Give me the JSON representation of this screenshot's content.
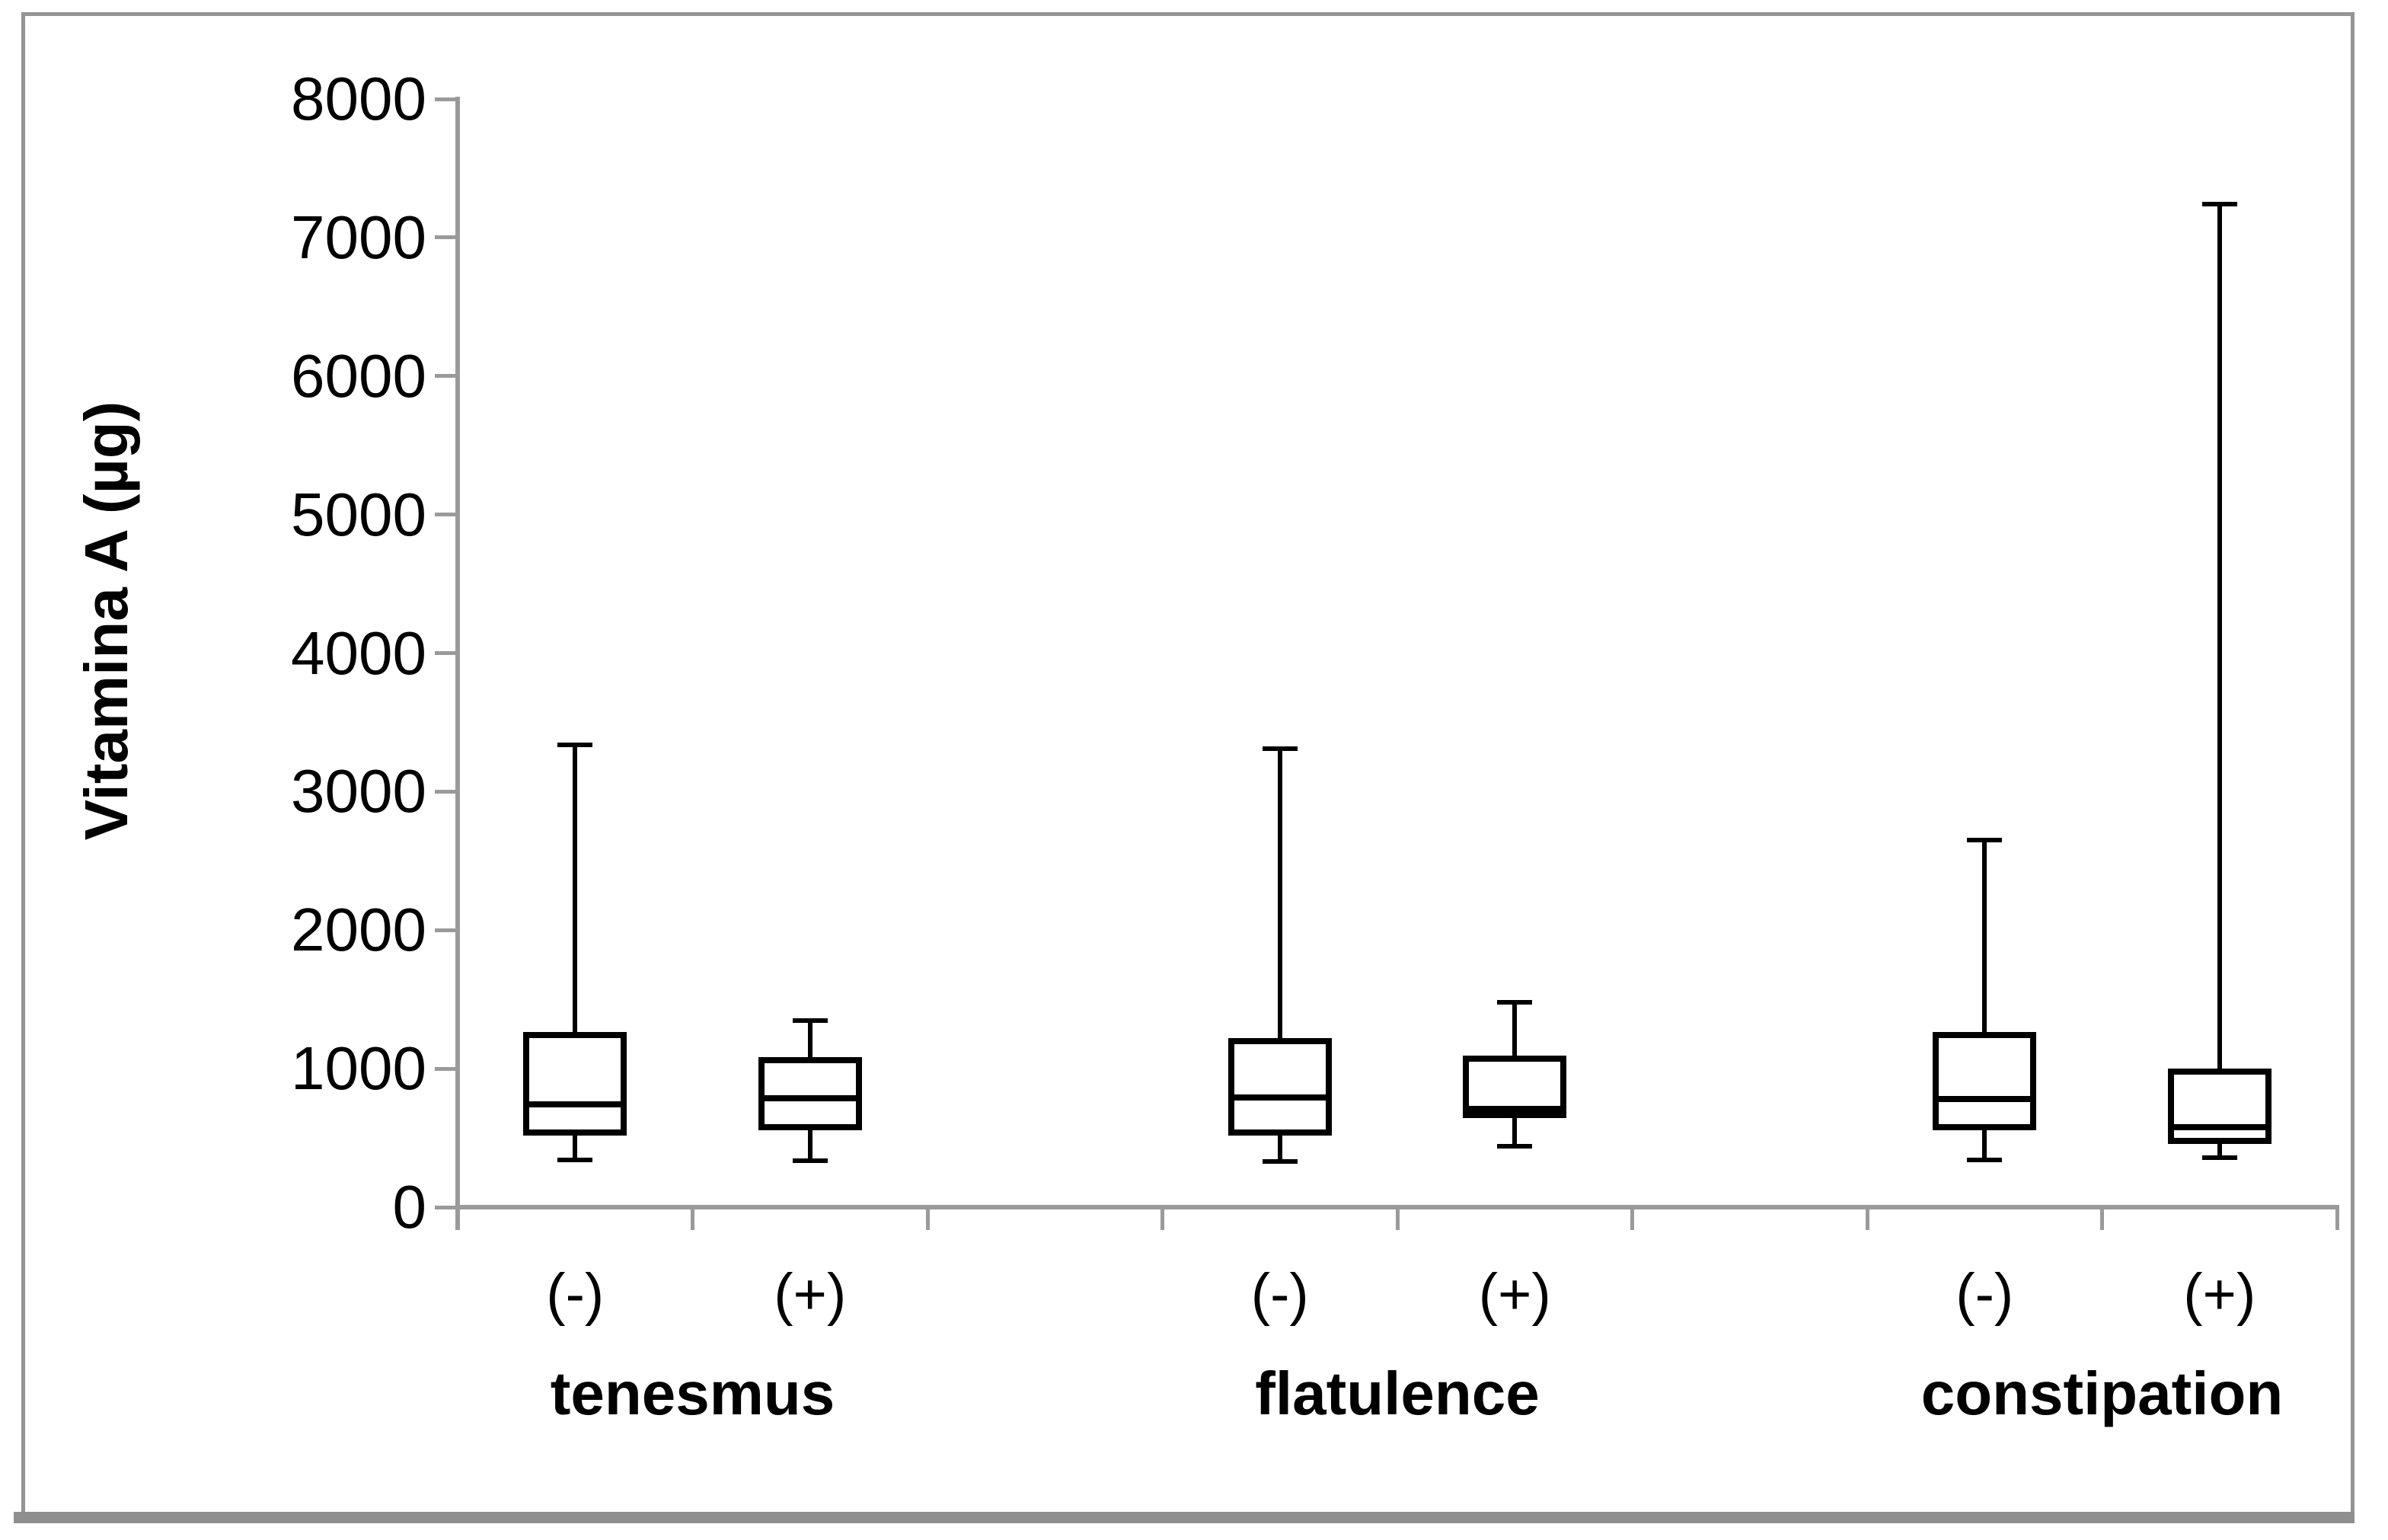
{
  "chart_data": {
    "type": "boxplot",
    "title": "",
    "ylabel": "Vitamina A (µg)",
    "xlabel": "",
    "ylim": [
      0,
      8000
    ],
    "ytick_step": 1000,
    "ytick_labels": [
      "0",
      "1000",
      "2000",
      "3000",
      "4000",
      "5000",
      "6000",
      "7000",
      "8000"
    ],
    "grid": false,
    "legend_position": "none",
    "groups": [
      {
        "label": "tenesmus",
        "boxes": [
          {
            "label": "(-)",
            "whisker_low": 340,
            "q1": 540,
            "median": 740,
            "q3": 1240,
            "whisker_high": 3340
          },
          {
            "label": "(+)",
            "whisker_low": 335,
            "q1": 575,
            "median": 785,
            "q3": 1060,
            "whisker_high": 1345
          }
        ]
      },
      {
        "label": "flatulence",
        "boxes": [
          {
            "label": "(-)",
            "whisker_low": 330,
            "q1": 540,
            "median": 790,
            "q3": 1200,
            "whisker_high": 3310
          },
          {
            "label": "(+)",
            "whisker_low": 440,
            "q1": 665,
            "median": 710,
            "q3": 1070,
            "whisker_high": 1480
          }
        ]
      },
      {
        "label": "constipation",
        "boxes": [
          {
            "label": "(-)",
            "whisker_low": 340,
            "q1": 575,
            "median": 780,
            "q3": 1245,
            "whisker_high": 2650
          },
          {
            "label": "(+)",
            "whisker_low": 360,
            "q1": 480,
            "median": 575,
            "q3": 980,
            "whisker_high": 7240
          }
        ]
      }
    ]
  },
  "colors": {
    "box_stroke": "#000000",
    "box_fill": "#ffffff",
    "axis": "#9a9a9a",
    "frame": "#949494",
    "text": "#000000",
    "background": "#ffffff"
  }
}
